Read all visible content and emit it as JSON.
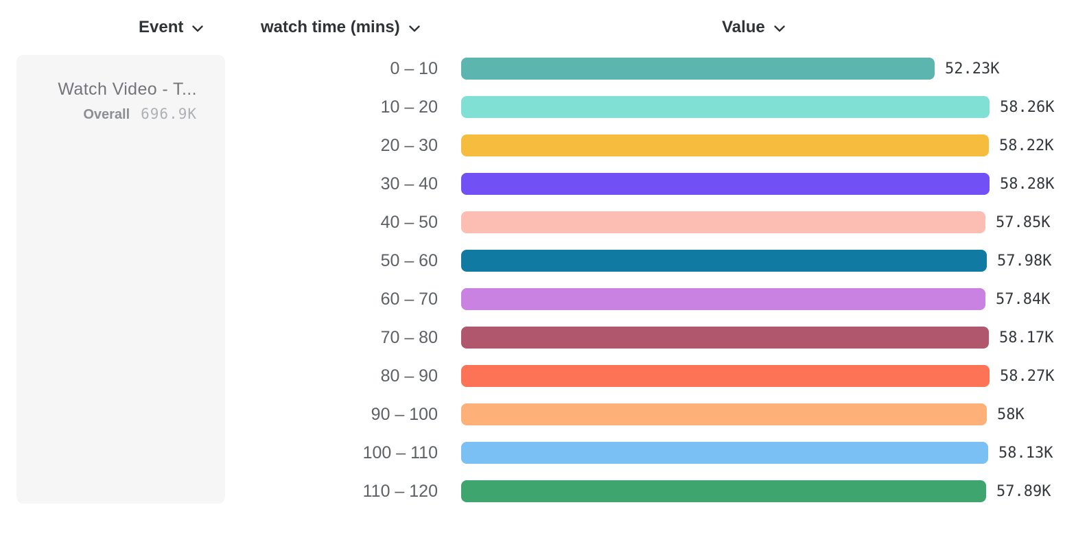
{
  "header": {
    "event_label": "Event",
    "dimension_label": "watch time (mins)",
    "value_label": "Value"
  },
  "event_card": {
    "title": "Watch Video - T...",
    "overall_label": "Overall",
    "overall_value": "696.9K"
  },
  "chart_data": {
    "type": "bar",
    "orientation": "horizontal",
    "title": "",
    "xlabel": "Value",
    "ylabel": "watch time (mins)",
    "legend": false,
    "grid": false,
    "categories": [
      "0 – 10",
      "10 – 20",
      "20 – 30",
      "30 – 40",
      "40 – 50",
      "50 – 60",
      "60 – 70",
      "70 – 80",
      "80 – 90",
      "90 – 100",
      "100 – 110",
      "110 – 120"
    ],
    "values": [
      52230,
      58260,
      58220,
      58280,
      57850,
      57980,
      57840,
      58170,
      58270,
      58000,
      58130,
      57890
    ],
    "value_labels": [
      "52.23K",
      "58.26K",
      "58.22K",
      "58.28K",
      "57.85K",
      "57.98K",
      "57.84K",
      "58.17K",
      "58.27K",
      "58K",
      "58.13K",
      "57.89K"
    ],
    "colors": [
      "#5CB5AE",
      "#80E0D4",
      "#F6BC3D",
      "#7150F5",
      "#FCBDB2",
      "#117AA3",
      "#C982E1",
      "#B0566D",
      "#FD7355",
      "#FDB078",
      "#7AC0F5",
      "#3FA56E"
    ],
    "accent_text_color": "#34373C",
    "label_color": "#5D6166"
  }
}
